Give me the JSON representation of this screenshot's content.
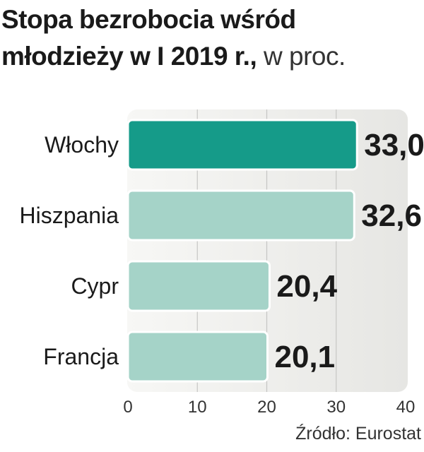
{
  "title": {
    "bold": "Stopa bezrobocia wśród młodzieży w I 2019 r.,",
    "unit": "w proc."
  },
  "source": "Źródło: Eurostat",
  "colors": {
    "highlight": "#159b89",
    "bar": "#a5d3c8",
    "panel": "#ececea",
    "grid": "#c6c6c4"
  },
  "chart_data": {
    "type": "bar",
    "orientation": "horizontal",
    "categories": [
      "Włochy",
      "Hiszpania",
      "Cypr",
      "Francja"
    ],
    "values": [
      33.0,
      32.6,
      20.4,
      20.1
    ],
    "value_labels": [
      "33,0",
      "32,6",
      "20,4",
      "20,1"
    ],
    "highlight_index": 0,
    "xlim": [
      0,
      40
    ],
    "xticks": [
      0,
      10,
      20,
      30,
      40
    ],
    "grid": true
  }
}
